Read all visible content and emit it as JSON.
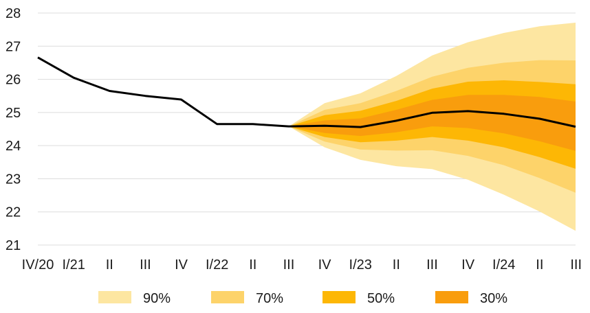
{
  "chart_data": {
    "type": "area",
    "title": "",
    "xlabel": "",
    "ylabel": "",
    "ylim": [
      21,
      28
    ],
    "yticks": [
      "21",
      "22",
      "23",
      "24",
      "25",
      "26",
      "27",
      "28"
    ],
    "categories": [
      "IV/20",
      "I/21",
      "II",
      "III",
      "IV",
      "I/22",
      "II",
      "III",
      "IV",
      "I/23",
      "II",
      "III",
      "IV",
      "I/24",
      "II",
      "III"
    ],
    "grid": "horizontal",
    "legend_position": "bottom",
    "series": [
      {
        "type": "line",
        "color": "#000000",
        "values": [
          26.66,
          26.05,
          25.65,
          25.5,
          25.39,
          24.65,
          24.65,
          24.58,
          24.6,
          24.56,
          24.75,
          24.99,
          25.04,
          24.96,
          24.81,
          24.57
        ]
      }
    ],
    "bands": [
      {
        "name": "90%",
        "color": "#fde6a1",
        "lower": [
          null,
          null,
          null,
          null,
          null,
          null,
          null,
          24.58,
          23.95,
          23.57,
          23.38,
          23.29,
          22.97,
          22.52,
          22.01,
          21.43
        ],
        "upper": [
          null,
          null,
          null,
          null,
          null,
          null,
          null,
          24.58,
          25.28,
          25.58,
          26.1,
          26.72,
          27.12,
          27.4,
          27.6,
          27.71
        ]
      },
      {
        "name": "70%",
        "color": "#fdd36a",
        "lower": [
          null,
          null,
          null,
          null,
          null,
          null,
          null,
          24.58,
          24.12,
          23.88,
          23.85,
          23.86,
          23.69,
          23.41,
          23.02,
          22.58
        ],
        "upper": [
          null,
          null,
          null,
          null,
          null,
          null,
          null,
          24.58,
          25.08,
          25.28,
          25.65,
          26.08,
          26.35,
          26.5,
          26.58,
          26.57
        ]
      },
      {
        "name": "50%",
        "color": "#fdb705",
        "lower": [
          null,
          null,
          null,
          null,
          null,
          null,
          null,
          24.58,
          24.26,
          24.1,
          24.15,
          24.26,
          24.15,
          23.95,
          23.65,
          23.3
        ],
        "upper": [
          null,
          null,
          null,
          null,
          null,
          null,
          null,
          24.58,
          24.92,
          25.05,
          25.35,
          25.72,
          25.93,
          25.97,
          25.92,
          25.85
        ]
      },
      {
        "name": "30%",
        "color": "#f99d0d",
        "lower": [
          null,
          null,
          null,
          null,
          null,
          null,
          null,
          24.58,
          24.38,
          24.29,
          24.4,
          24.58,
          24.53,
          24.37,
          24.13,
          23.84
        ],
        "upper": [
          null,
          null,
          null,
          null,
          null,
          null,
          null,
          24.58,
          24.76,
          24.82,
          25.08,
          25.38,
          25.53,
          25.53,
          25.47,
          25.33
        ]
      }
    ]
  },
  "legend": {
    "items": [
      {
        "label": "90%",
        "color": "#fde6a1"
      },
      {
        "label": "70%",
        "color": "#fdd36a"
      },
      {
        "label": "50%",
        "color": "#fdb705"
      },
      {
        "label": "30%",
        "color": "#f99d0d"
      }
    ]
  }
}
